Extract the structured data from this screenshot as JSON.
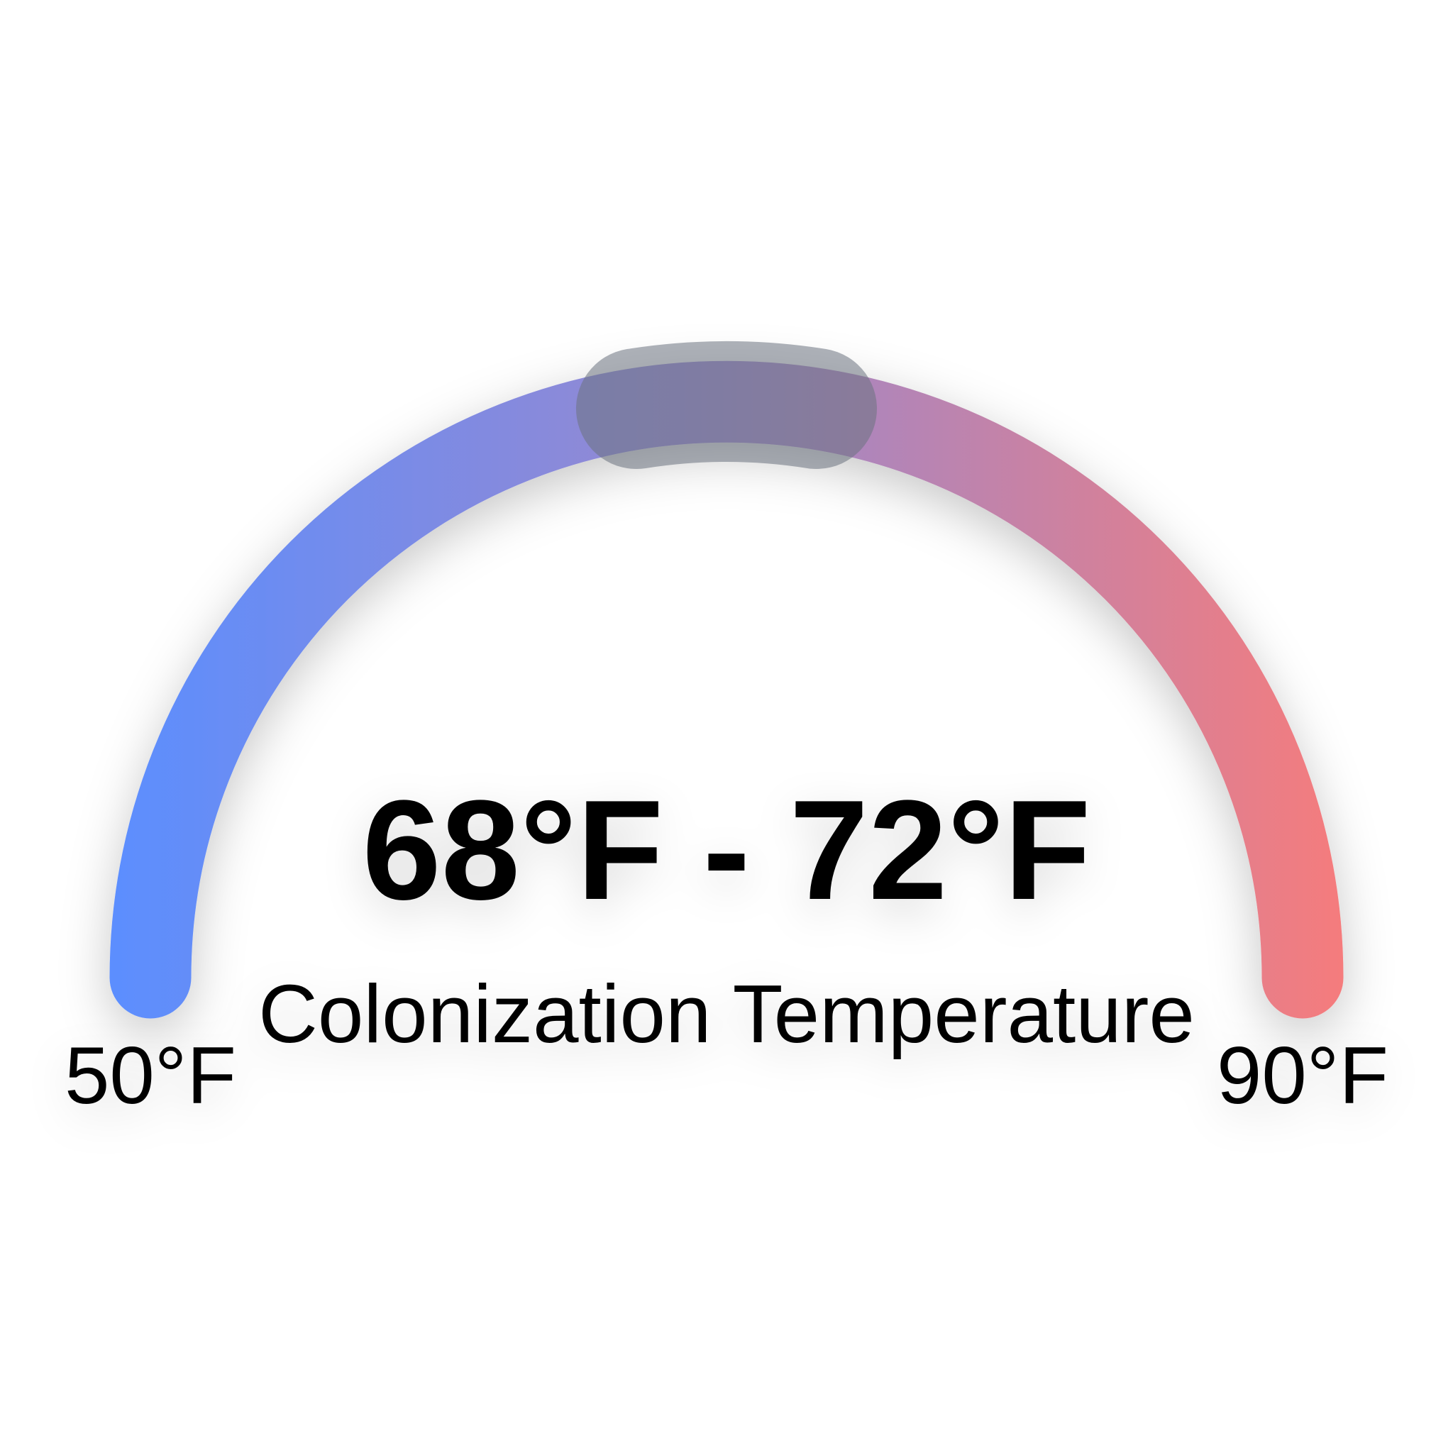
{
  "chart_data": {
    "type": "gauge",
    "min": 50,
    "max": 90,
    "range_low": 68,
    "range_high": 72,
    "value_label": "68°F - 72°F",
    "subtitle": "Colonization Temperature",
    "min_label": "50°F",
    "max_label": "90°F",
    "colors": {
      "start": "#5b8eff",
      "mid": "#9b88cc",
      "end": "#f67c7c",
      "highlight": "#6b7280"
    }
  }
}
